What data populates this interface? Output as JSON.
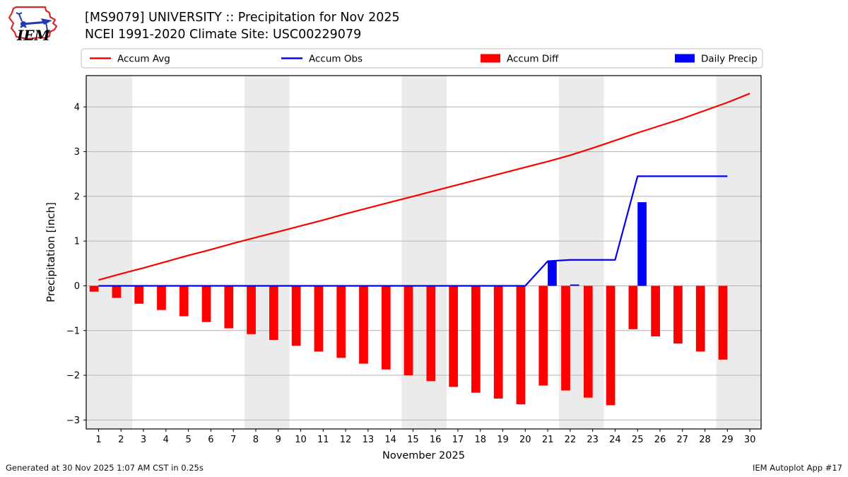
{
  "header": {
    "title_line1": "[MS9079] UNIVERSITY :: Precipitation for Nov 2025",
    "title_line2": "NCEI 1991-2020 Climate Site: USC00229079",
    "logo_text": "IEM"
  },
  "footer": {
    "left": "Generated at 30 Nov 2025 1:07 AM CST in 0.25s",
    "right": "IEM Autoplot App #17"
  },
  "colors": {
    "accum_avg": "#ff0000",
    "accum_obs": "#0000ff",
    "accum_diff": "#ff0000",
    "daily_precip": "#0000ff",
    "weekend_band": "#ebebeb",
    "gridline": "#b4b4b4",
    "plot_border": "#000000",
    "legend_border": "#cccccc",
    "logo_red": "#d42a2e",
    "logo_blue": "#2038b0"
  },
  "chart_data": {
    "type": "line+bar",
    "title": "[MS9079] UNIVERSITY :: Precipitation for Nov 2025",
    "subtitle": "NCEI 1991-2020 Climate Site: USC00229079",
    "xlabel": "November 2025",
    "ylabel": "Precipitation [inch]",
    "xlim": [
      0.45,
      30.5
    ],
    "ylim": [
      -3.2,
      4.7
    ],
    "grid": true,
    "legend_position": "top",
    "xticks": [
      1,
      2,
      3,
      4,
      5,
      6,
      7,
      8,
      9,
      10,
      11,
      12,
      13,
      14,
      15,
      16,
      17,
      18,
      19,
      20,
      21,
      22,
      23,
      24,
      25,
      26,
      27,
      28,
      29,
      30
    ],
    "yticks": [
      -3,
      -2,
      -1,
      0,
      1,
      2,
      3,
      4
    ],
    "weekend_bands": [
      [
        0.45,
        2.5
      ],
      [
        7.5,
        9.5
      ],
      [
        14.5,
        16.5
      ],
      [
        21.5,
        23.5
      ],
      [
        28.5,
        30.5
      ]
    ],
    "legend": [
      {
        "label": "Accum Avg",
        "swatch": "line",
        "color": "#ff0000"
      },
      {
        "label": "Accum Obs",
        "swatch": "line",
        "color": "#0000ff"
      },
      {
        "label": "Accum Diff",
        "swatch": "rect",
        "color": "#ff0000"
      },
      {
        "label": "Daily Precip",
        "swatch": "rect",
        "color": "#0000ff"
      }
    ],
    "days": [
      1,
      2,
      3,
      4,
      5,
      6,
      7,
      8,
      9,
      10,
      11,
      12,
      13,
      14,
      15,
      16,
      17,
      18,
      19,
      20,
      21,
      22,
      23,
      24,
      25,
      26,
      27,
      28,
      29,
      30
    ],
    "series": [
      {
        "name": "Accum Avg",
        "type": "line",
        "color": "#ff0000",
        "values": [
          0.13,
          0.27,
          0.4,
          0.54,
          0.68,
          0.81,
          0.95,
          1.08,
          1.21,
          1.34,
          1.47,
          1.61,
          1.74,
          1.87,
          2.0,
          2.13,
          2.26,
          2.39,
          2.52,
          2.65,
          2.78,
          2.92,
          3.08,
          3.25,
          3.42,
          3.58,
          3.74,
          3.92,
          4.1,
          4.3
        ]
      },
      {
        "name": "Accum Obs",
        "type": "line",
        "color": "#0000ff",
        "values": [
          0,
          0,
          0,
          0,
          0,
          0,
          0,
          0,
          0,
          0,
          0,
          0,
          0,
          0,
          0,
          0,
          0,
          0,
          0,
          0,
          0.55,
          0.58,
          0.58,
          0.58,
          2.45,
          2.45,
          2.45,
          2.45,
          2.45,
          null
        ]
      },
      {
        "name": "Accum Diff",
        "type": "bar",
        "side": "left",
        "color": "#ff0000",
        "values": [
          -0.13,
          -0.27,
          -0.4,
          -0.54,
          -0.68,
          -0.81,
          -0.95,
          -1.08,
          -1.21,
          -1.34,
          -1.47,
          -1.61,
          -1.74,
          -1.87,
          -2.0,
          -2.13,
          -2.26,
          -2.39,
          -2.52,
          -2.65,
          -2.23,
          -2.34,
          -2.5,
          -2.67,
          -0.97,
          -1.13,
          -1.29,
          -1.47,
          -1.65,
          null
        ]
      },
      {
        "name": "Daily Precip",
        "type": "bar",
        "side": "right",
        "color": "#0000ff",
        "values": [
          0,
          0,
          0,
          0,
          0,
          0,
          0,
          0,
          0,
          0,
          0,
          0,
          0,
          0,
          0,
          0,
          0,
          0,
          0,
          0,
          0.55,
          0.03,
          0,
          0,
          1.87,
          0,
          0,
          0,
          0,
          null
        ]
      }
    ]
  }
}
